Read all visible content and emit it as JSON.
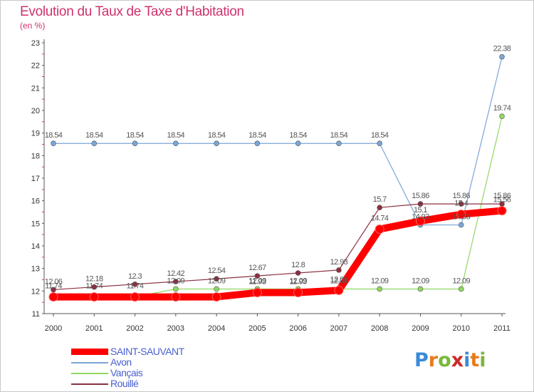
{
  "title": "Evolution du Taux de Taxe d'Habitation",
  "unit_label": "(en %)",
  "logo": {
    "letters": [
      "P",
      "r",
      "o",
      "x",
      "i",
      "t",
      "i"
    ],
    "colors": [
      "#3a8ad8",
      "#e87a1e",
      "#7ab83a",
      "#d02828",
      "#3a8ad8",
      "#e87a1e",
      "#7ab83a"
    ]
  },
  "chart_data": {
    "type": "line",
    "title": "Evolution du Taux de Taxe d'Habitation",
    "ylabel": "(en %)",
    "xlabel": "",
    "x": [
      "2000",
      "2001",
      "2002",
      "2003",
      "2004",
      "2005",
      "2006",
      "2007",
      "2008",
      "2009",
      "2010",
      "2011"
    ],
    "ylim": [
      11,
      23
    ],
    "yticks": [
      "11",
      "12",
      "13",
      "14",
      "15",
      "16",
      "17",
      "18",
      "19",
      "20",
      "21",
      "22",
      "23"
    ],
    "grid": false,
    "legend_position": "bottom-left",
    "series": [
      {
        "name": "SAINT-SAUVANT",
        "color": "#ff0000",
        "values": [
          11.74,
          11.74,
          11.74,
          11.74,
          11.74,
          11.93,
          11.93,
          12.03,
          14.74,
          15.1,
          15.4,
          15.56
        ],
        "labels": [
          "11.74",
          "11.74",
          "11.74",
          "",
          "",
          "11.93",
          "11.93",
          "12.03",
          "14.74",
          "15.1",
          "15.4",
          "15.56"
        ]
      },
      {
        "name": "Avon",
        "color": "#7aa6d6",
        "values": [
          18.54,
          18.54,
          18.54,
          18.54,
          18.54,
          18.54,
          18.54,
          18.54,
          18.54,
          14.93,
          14.93,
          22.38
        ],
        "labels": [
          "18.54",
          "18.54",
          "18.54",
          "18.54",
          "18.54",
          "18.54",
          "18.54",
          "18.54",
          "18.54",
          "14.93",
          "14.93",
          "22.38"
        ]
      },
      {
        "name": "Vançais",
        "color": "#90d860",
        "values": [
          11.74,
          11.74,
          11.74,
          12.09,
          12.09,
          12.09,
          12.09,
          12.09,
          12.09,
          12.09,
          12.09,
          19.74
        ],
        "labels": [
          "",
          "",
          "",
          "12.09",
          "12.09",
          "12.09",
          "12.09",
          "12.09",
          "12.09",
          "12.09",
          "12.09",
          "19.74"
        ]
      },
      {
        "name": "Rouillé",
        "color": "#8b3040",
        "values": [
          12.06,
          12.18,
          12.3,
          12.42,
          12.54,
          12.67,
          12.8,
          12.93,
          15.7,
          15.86,
          15.86,
          15.86
        ],
        "labels": [
          "12.06",
          "12.18",
          "12.3",
          "12.42",
          "12.54",
          "12.67",
          "12.8",
          "12.93",
          "15.7",
          "15.86",
          "15.86",
          "15.86"
        ]
      }
    ]
  },
  "legend": [
    {
      "label": "SAINT-SAUVANT",
      "color": "#ff0000",
      "thickness": "thick"
    },
    {
      "label": "Avon",
      "color": "#7aa6d6",
      "thickness": "thin"
    },
    {
      "label": "Vançais",
      "color": "#90d860",
      "thickness": "thin"
    },
    {
      "label": "Rouillé",
      "color": "#8b3040",
      "thickness": "thin"
    }
  ]
}
